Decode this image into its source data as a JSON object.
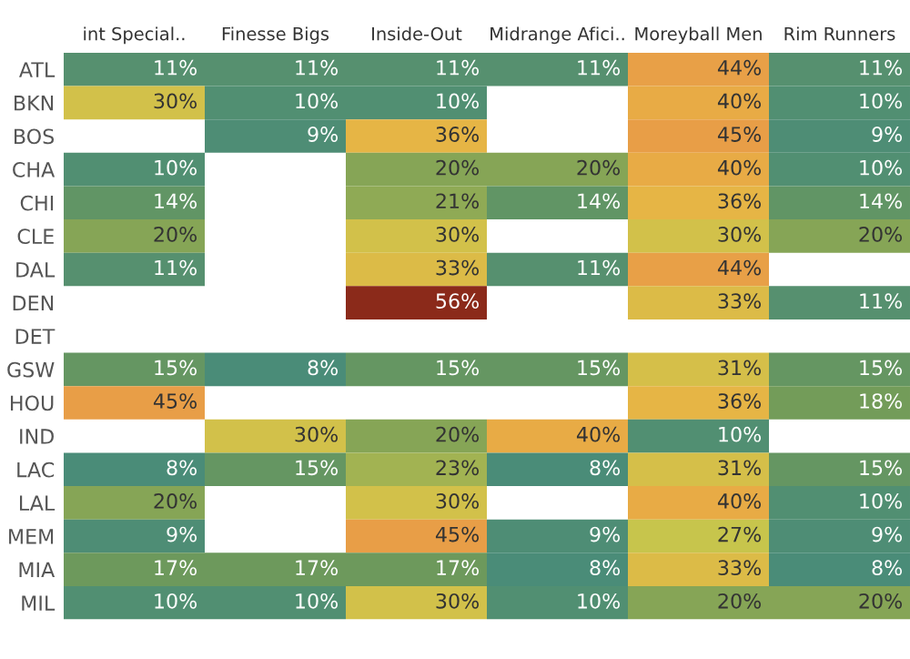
{
  "chart_data": {
    "type": "heatmap",
    "categories": [
      "int Special..",
      "Finesse Bigs",
      "Inside-Out",
      "Midrange Afici..",
      "Moreyball Men",
      "Rim Runners"
    ],
    "y_categories": [
      "ATL",
      "BKN",
      "BOS",
      "CHA",
      "CHI",
      "CLE",
      "DAL",
      "DEN",
      "DET",
      "GSW",
      "HOU",
      "IND",
      "LAC",
      "LAL",
      "MEM",
      "MIA",
      "MIL"
    ],
    "cells": [
      [
        11,
        11,
        11,
        11,
        44,
        11
      ],
      [
        30,
        10,
        10,
        null,
        40,
        10
      ],
      [
        null,
        9,
        36,
        null,
        45,
        9
      ],
      [
        10,
        null,
        20,
        20,
        40,
        10
      ],
      [
        14,
        null,
        21,
        14,
        36,
        14
      ],
      [
        20,
        null,
        30,
        null,
        30,
        20
      ],
      [
        11,
        null,
        33,
        11,
        44,
        null
      ],
      [
        null,
        null,
        56,
        null,
        33,
        11
      ],
      [
        null,
        null,
        null,
        null,
        null,
        null
      ],
      [
        15,
        8,
        15,
        15,
        31,
        15
      ],
      [
        45,
        null,
        null,
        null,
        36,
        18
      ],
      [
        null,
        30,
        20,
        40,
        10,
        null
      ],
      [
        8,
        15,
        23,
        8,
        31,
        15
      ],
      [
        20,
        null,
        30,
        null,
        40,
        10
      ],
      [
        9,
        null,
        45,
        9,
        27,
        9
      ],
      [
        17,
        17,
        17,
        8,
        33,
        8
      ],
      [
        10,
        10,
        30,
        10,
        20,
        20
      ]
    ],
    "cell_labels": [
      [
        "11%",
        "11%",
        "11%",
        "11%",
        "44%",
        "11%"
      ],
      [
        "30%",
        "10%",
        "10%",
        null,
        "40%",
        "10%"
      ],
      [
        null,
        "9%",
        "36%",
        null,
        "45%",
        "9%"
      ],
      [
        "10%",
        null,
        "20%",
        "20%",
        "40%",
        "10%"
      ],
      [
        "14%",
        null,
        "21%",
        "14%",
        "36%",
        "14%"
      ],
      [
        "20%",
        null,
        "30%",
        null,
        "30%",
        "20%"
      ],
      [
        "11%",
        null,
        "33%",
        "11%",
        "44%",
        null
      ],
      [
        null,
        null,
        "56%",
        null,
        "33%",
        "11%"
      ],
      [
        null,
        null,
        null,
        null,
        null,
        null
      ],
      [
        "15%",
        "8%",
        "15%",
        "15%",
        "31%",
        "15%"
      ],
      [
        "45%",
        null,
        null,
        null,
        "36%",
        "18%"
      ],
      [
        null,
        "30%",
        "20%",
        "40%",
        "10%",
        null
      ],
      [
        "8%",
        "15%",
        "23%",
        "8%",
        "31%",
        "15%"
      ],
      [
        "20%",
        null,
        "30%",
        null,
        "40%",
        "10%"
      ],
      [
        "9%",
        null,
        "45%",
        "9%",
        "27%",
        "9%"
      ],
      [
        "17%",
        "17%",
        "17%",
        "8%",
        "33%",
        "8%"
      ],
      [
        "10%",
        "10%",
        "30%",
        "10%",
        "20%",
        "20%"
      ]
    ]
  }
}
